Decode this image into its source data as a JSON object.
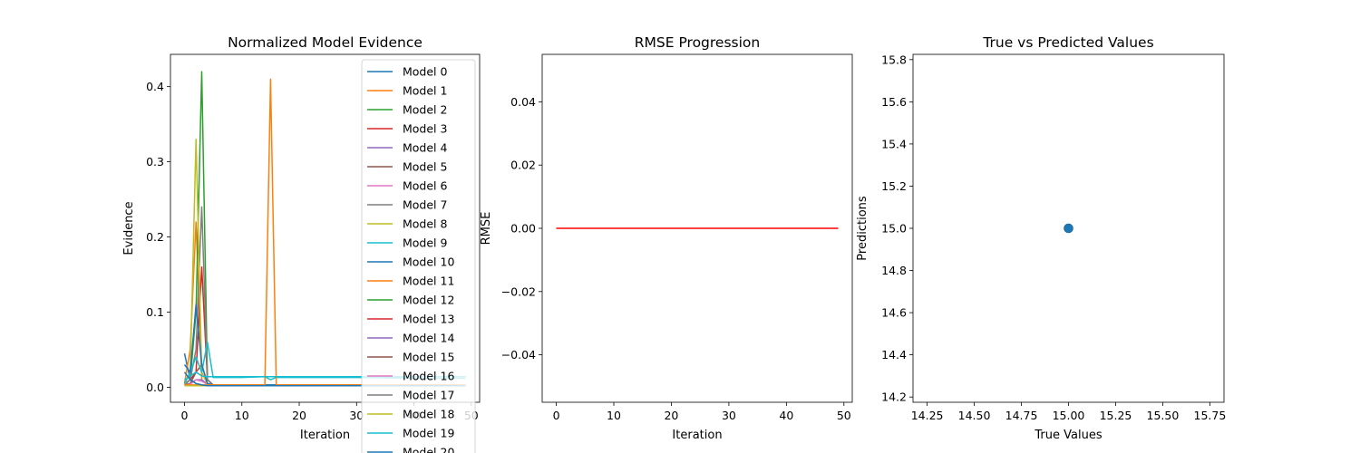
{
  "chart_data": [
    {
      "type": "line",
      "title": "Normalized Model Evidence",
      "xlabel": "Iteration",
      "ylabel": "Evidence",
      "xlim": [
        -2.45,
        51.45
      ],
      "ylim": [
        -0.02,
        0.443
      ],
      "xticks": [
        0,
        10,
        20,
        30,
        40,
        50
      ],
      "yticks": [
        0.0,
        0.1,
        0.2,
        0.3,
        0.4
      ],
      "xtick_labels": [
        "0",
        "10",
        "20",
        "30",
        "40",
        "50"
      ],
      "ytick_labels": [
        "0.0",
        "0.1",
        "0.2",
        "0.3",
        "0.4"
      ],
      "grid": false,
      "legend": "upper-right",
      "colors": [
        "#1f77b4",
        "#ff7f0e",
        "#2ca02c",
        "#d62728",
        "#9467bd",
        "#8c564b",
        "#e377c2",
        "#7f7f7f",
        "#bcbd22",
        "#17becf"
      ],
      "series": [
        {
          "name": "Model 0",
          "x": [
            0,
            1,
            2,
            3,
            4,
            5,
            10,
            20,
            30,
            40,
            49
          ],
          "values": [
            0.045,
            0.01,
            0.005,
            0.003,
            0.002,
            0.002,
            0.002,
            0.002,
            0.002,
            0.002,
            0.002
          ]
        },
        {
          "name": "Model 1",
          "x": [
            0,
            1,
            2,
            3,
            4,
            5,
            10,
            20,
            30,
            40,
            49
          ],
          "values": [
            0.005,
            0.05,
            0.22,
            0.01,
            0.003,
            0.003,
            0.003,
            0.003,
            0.003,
            0.003,
            0.003
          ]
        },
        {
          "name": "Model 2",
          "x": [
            0,
            1,
            2,
            3,
            4,
            5,
            10,
            20,
            30,
            40,
            49
          ],
          "values": [
            0.004,
            0.01,
            0.1,
            0.42,
            0.01,
            0.003,
            0.003,
            0.003,
            0.003,
            0.003,
            0.003
          ]
        },
        {
          "name": "Model 3",
          "x": [
            0,
            1,
            2,
            3,
            4,
            5,
            10,
            20,
            30,
            40,
            49
          ],
          "values": [
            0.004,
            0.01,
            0.02,
            0.16,
            0.01,
            0.003,
            0.003,
            0.003,
            0.003,
            0.003,
            0.003
          ]
        },
        {
          "name": "Model 4",
          "x": [
            0,
            1,
            2,
            3,
            4,
            5,
            10,
            20,
            30,
            40,
            49
          ],
          "values": [
            0.003,
            0.005,
            0.01,
            0.01,
            0.004,
            0.003,
            0.003,
            0.003,
            0.003,
            0.003,
            0.003
          ]
        },
        {
          "name": "Model 5",
          "x": [
            0,
            1,
            2,
            3,
            4,
            5,
            10,
            20,
            30,
            40,
            49
          ],
          "values": [
            0.003,
            0.005,
            0.02,
            0.03,
            0.005,
            0.003,
            0.003,
            0.003,
            0.003,
            0.003,
            0.003
          ]
        },
        {
          "name": "Model 6",
          "x": [
            0,
            1,
            2,
            3,
            4,
            5,
            10,
            20,
            30,
            40,
            49
          ],
          "values": [
            0.003,
            0.004,
            0.01,
            0.008,
            0.004,
            0.003,
            0.003,
            0.003,
            0.003,
            0.003,
            0.003
          ]
        },
        {
          "name": "Model 7",
          "x": [
            0,
            1,
            2,
            3,
            4,
            5,
            10,
            20,
            30,
            40,
            49
          ],
          "values": [
            0.003,
            0.01,
            0.05,
            0.24,
            0.01,
            0.003,
            0.003,
            0.003,
            0.003,
            0.003,
            0.003
          ]
        },
        {
          "name": "Model 8",
          "x": [
            0,
            1,
            2,
            3,
            4,
            5,
            10,
            20,
            30,
            40,
            49
          ],
          "values": [
            0.004,
            0.02,
            0.33,
            0.02,
            0.004,
            0.003,
            0.003,
            0.003,
            0.003,
            0.003,
            0.003
          ]
        },
        {
          "name": "Model 9",
          "x": [
            0,
            1,
            2,
            3,
            4,
            5,
            10,
            14,
            15,
            16,
            20,
            30,
            40,
            49
          ],
          "values": [
            0.005,
            0.02,
            0.04,
            0.02,
            0.06,
            0.013,
            0.013,
            0.014,
            0.01,
            0.013,
            0.013,
            0.013,
            0.012,
            0.012
          ]
        },
        {
          "name": "Model 10",
          "x": [
            0,
            1,
            2,
            3,
            4,
            5,
            10,
            20,
            30,
            40,
            49
          ],
          "values": [
            0.03,
            0.02,
            0.11,
            0.03,
            0.005,
            0.003,
            0.003,
            0.003,
            0.003,
            0.003,
            0.003
          ]
        },
        {
          "name": "Model 11",
          "x": [
            0,
            5,
            10,
            14,
            15,
            16,
            20,
            30,
            40,
            49
          ],
          "values": [
            0.003,
            0.003,
            0.003,
            0.003,
            0.41,
            0.003,
            0.003,
            0.003,
            0.003,
            0.003
          ]
        },
        {
          "name": "Model 12",
          "x": [
            0,
            10,
            20,
            30,
            40,
            49
          ],
          "values": [
            0.002,
            0.002,
            0.002,
            0.002,
            0.002,
            0.002
          ]
        },
        {
          "name": "Model 13",
          "x": [
            0,
            10,
            20,
            30,
            40,
            49
          ],
          "values": [
            0.002,
            0.002,
            0.002,
            0.002,
            0.002,
            0.002
          ]
        },
        {
          "name": "Model 14",
          "x": [
            0,
            10,
            20,
            30,
            40,
            49
          ],
          "values": [
            0.002,
            0.002,
            0.002,
            0.002,
            0.002,
            0.002
          ]
        },
        {
          "name": "Model 15",
          "x": [
            0,
            10,
            20,
            30,
            40,
            49
          ],
          "values": [
            0.002,
            0.002,
            0.002,
            0.002,
            0.002,
            0.002
          ]
        },
        {
          "name": "Model 16",
          "x": [
            0,
            10,
            20,
            30,
            40,
            49
          ],
          "values": [
            0.002,
            0.002,
            0.002,
            0.002,
            0.002,
            0.002
          ]
        },
        {
          "name": "Model 17",
          "x": [
            0,
            10,
            20,
            30,
            40,
            49
          ],
          "values": [
            0.002,
            0.002,
            0.002,
            0.002,
            0.002,
            0.002
          ]
        },
        {
          "name": "Model 18",
          "x": [
            0,
            10,
            20,
            30,
            40,
            49
          ],
          "values": [
            0.002,
            0.002,
            0.002,
            0.002,
            0.002,
            0.002
          ]
        },
        {
          "name": "Model 19",
          "x": [
            0,
            1,
            2,
            3,
            4,
            5,
            10,
            20,
            30,
            40,
            49
          ],
          "values": [
            0.01,
            0.015,
            0.02,
            0.015,
            0.014,
            0.014,
            0.014,
            0.014,
            0.014,
            0.014,
            0.014
          ]
        },
        {
          "name": "Model 20",
          "x": [
            0,
            1,
            2,
            3,
            4,
            5,
            10,
            20,
            30,
            40,
            49
          ],
          "values": [
            0.02,
            0.01,
            0.005,
            0.003,
            0.002,
            0.002,
            0.002,
            0.002,
            0.002,
            0.002,
            0.002
          ]
        }
      ]
    },
    {
      "type": "line",
      "title": "RMSE Progression",
      "xlabel": "Iteration",
      "ylabel": "RMSE",
      "xlim": [
        -2.45,
        51.45
      ],
      "ylim": [
        -0.055,
        0.055
      ],
      "xticks": [
        0,
        10,
        20,
        30,
        40,
        50
      ],
      "yticks": [
        -0.04,
        -0.02,
        0.0,
        0.02,
        0.04
      ],
      "xtick_labels": [
        "0",
        "10",
        "20",
        "30",
        "40",
        "50"
      ],
      "ytick_labels": [
        "−0.04",
        "−0.02",
        "0.00",
        "0.02",
        "0.04"
      ],
      "grid": false,
      "color": "#ff0000",
      "series": [
        {
          "x": [
            0,
            49
          ],
          "values": [
            0.0,
            0.0
          ]
        }
      ]
    },
    {
      "type": "scatter",
      "title": "True vs Predicted Values",
      "xlabel": "True Values",
      "ylabel": "Predictions",
      "xlim": [
        14.175,
        15.825
      ],
      "ylim": [
        14.175,
        15.825
      ],
      "xticks": [
        14.25,
        14.5,
        14.75,
        15.0,
        15.25,
        15.5,
        15.75
      ],
      "yticks": [
        14.2,
        14.4,
        14.6,
        14.8,
        15.0,
        15.2,
        15.4,
        15.6,
        15.8
      ],
      "xtick_labels": [
        "14.25",
        "14.50",
        "14.75",
        "15.00",
        "15.25",
        "15.50",
        "15.75"
      ],
      "ytick_labels": [
        "14.2",
        "14.4",
        "14.6",
        "14.8",
        "15.0",
        "15.2",
        "15.4",
        "15.6",
        "15.8"
      ],
      "grid": false,
      "color": "#1f77b4",
      "series": [
        {
          "x": [
            15.0
          ],
          "values": [
            15.0
          ]
        }
      ]
    }
  ]
}
